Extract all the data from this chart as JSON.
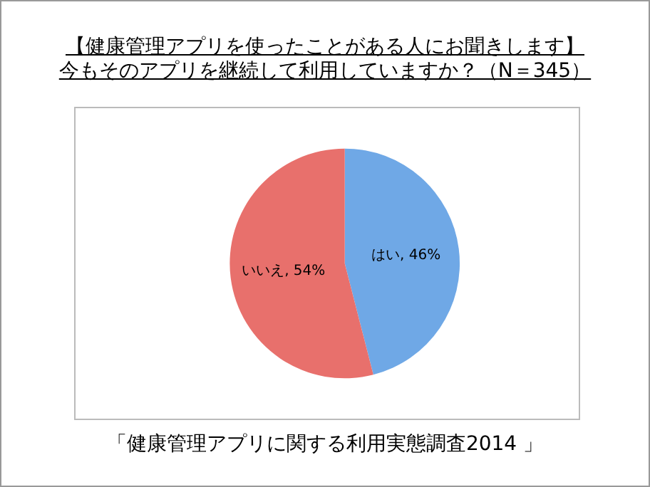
{
  "chart_data": {
    "type": "pie",
    "title": "【健康管理アプリを使ったことがある人にお聞きします】",
    "subtitle": "今もそのアプリを継続して利用していますか？（N＝345）",
    "categories": [
      "はい",
      "いいえ"
    ],
    "values": [
      46,
      54
    ],
    "colors": [
      "#6fa8e6",
      "#e8706c"
    ],
    "value_labels": [
      "46%",
      "54%"
    ],
    "annotations": [
      "「健康管理アプリに関する利用実態調査2014 」"
    ]
  }
}
